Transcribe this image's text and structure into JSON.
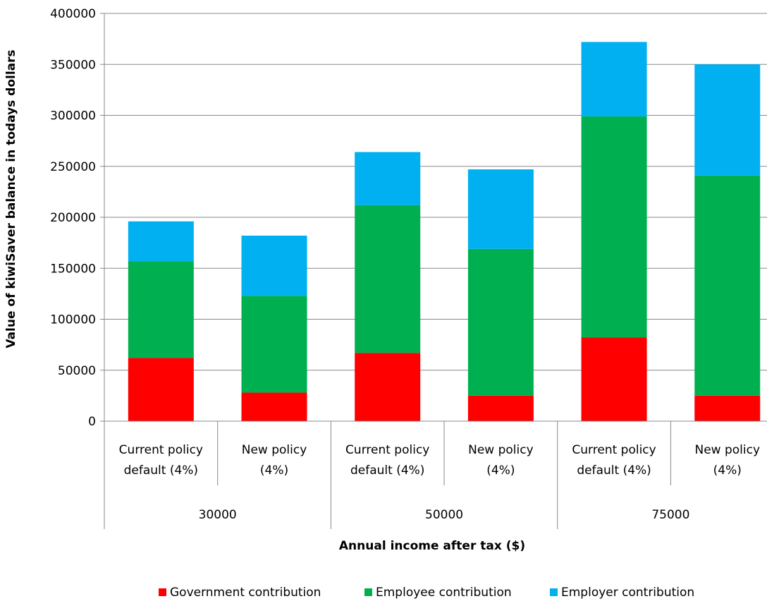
{
  "chart_data": {
    "type": "bar",
    "stacked": true,
    "xlabel": "Annual income after tax ($)",
    "ylabel": "Value of kiwiSaver balance in todays dollars",
    "ylim": [
      0,
      400000
    ],
    "yticks": [
      0,
      50000,
      100000,
      150000,
      200000,
      250000,
      300000,
      350000,
      400000
    ],
    "ytick_labels": [
      "0",
      "50000",
      "100000",
      "150000",
      "200000",
      "250000",
      "300000",
      "350000",
      "400000"
    ],
    "categories": [
      [
        "Current policy",
        "default (4%)"
      ],
      [
        "New policy",
        "(4%)"
      ],
      [
        "Current policy",
        "default (4%)"
      ],
      [
        "New policy",
        "(4%)"
      ],
      [
        "Current policy",
        "default (4%)"
      ],
      [
        "New policy",
        "(4%)"
      ]
    ],
    "groups": [
      {
        "label": "30000",
        "span": 2
      },
      {
        "label": "50000",
        "span": 2
      },
      {
        "label": "75000",
        "span": 2
      }
    ],
    "series": [
      {
        "name": "Government contribution",
        "color": "#ff0000",
        "values": [
          62000,
          28000,
          67000,
          25000,
          82000,
          25000
        ]
      },
      {
        "name": "Employee contribution",
        "color": "#00b050",
        "values": [
          95000,
          95000,
          145000,
          144000,
          217000,
          216000
        ]
      },
      {
        "name": "Employer contribution",
        "color": "#00b0f0",
        "values": [
          39000,
          59000,
          52000,
          78000,
          73000,
          109000
        ]
      }
    ],
    "grid": true,
    "legend_position": "bottom"
  }
}
